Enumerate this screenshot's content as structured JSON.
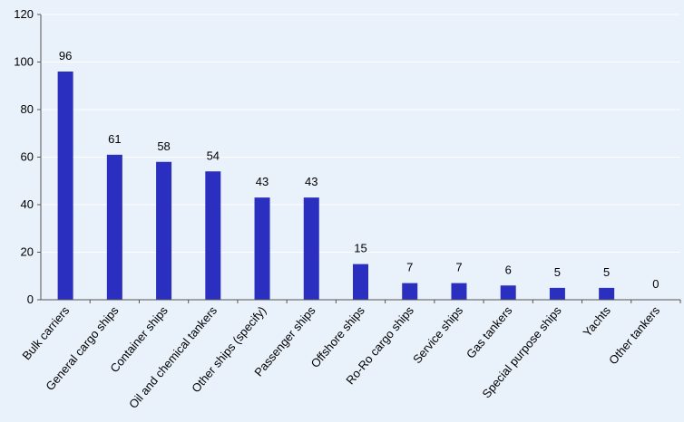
{
  "chart_data": {
    "type": "bar",
    "title": "",
    "xlabel": "",
    "ylabel": "",
    "ylim": [
      0,
      120
    ],
    "yticks": [
      0,
      20,
      40,
      60,
      80,
      100,
      120
    ],
    "grid": true,
    "categories": [
      "Bulk carriers",
      "General cargo ships",
      "Container ships",
      "Oil and chemical tankers",
      "Other ships (specify)",
      "Passenger ships",
      "Offshore ships",
      "Ro-Ro cargo ships",
      "Service ships",
      "Gas tankers",
      "Special purpose ships",
      "Yachts",
      "Other tankers"
    ],
    "values": [
      96,
      61,
      58,
      54,
      43,
      43,
      15,
      7,
      7,
      6,
      5,
      5,
      0
    ],
    "colors": {
      "bar": "#2b2fbf",
      "background": "#e9f1fb",
      "grid": "#ffffff",
      "axis": "#555555"
    }
  }
}
